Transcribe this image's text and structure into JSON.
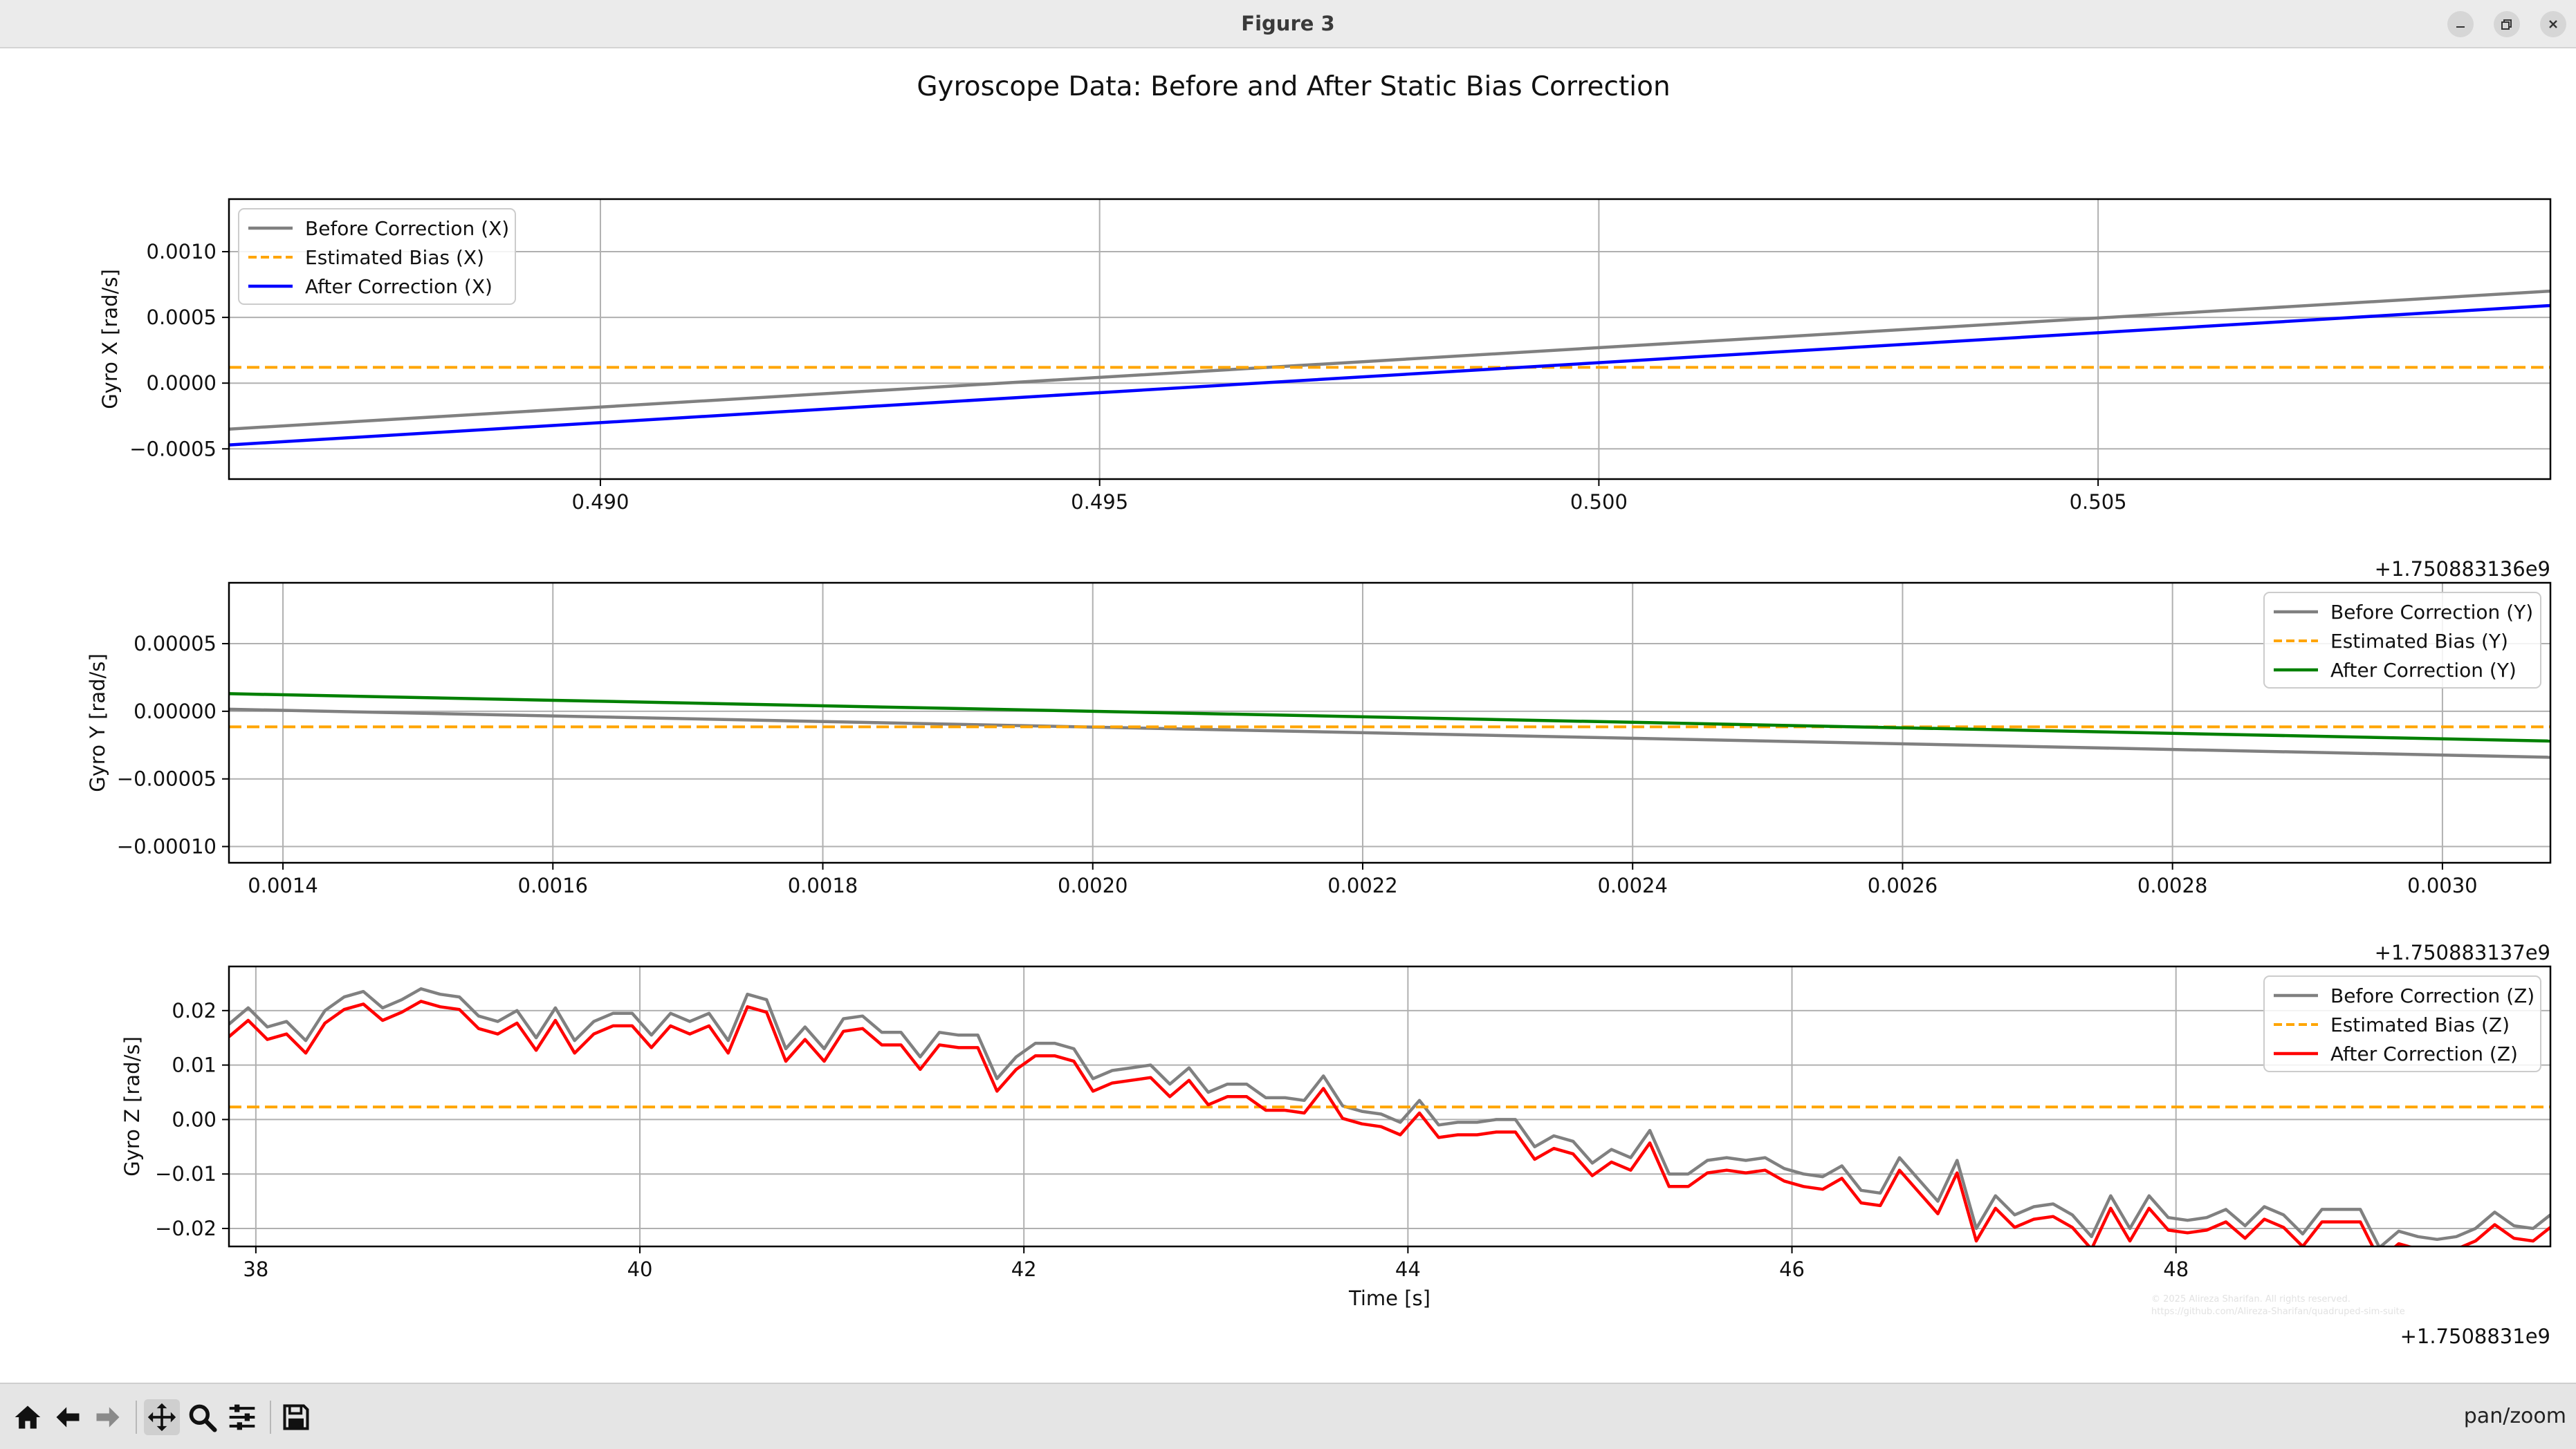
{
  "window": {
    "title": "Figure 3"
  },
  "figure": {
    "suptitle": "Gyroscope Data: Before and After Static Bias Correction",
    "watermark": [
      "© 2025 Alireza Sharifan. All rights reserved.",
      "https://github.com/Alireza-Sharifan/quadruped-sim-suite"
    ]
  },
  "toolbar": {
    "items": [
      "home",
      "back",
      "forward",
      "pan",
      "zoom",
      "configure",
      "save"
    ],
    "status": "pan/zoom"
  },
  "colors": {
    "before": "#808080",
    "bias": "#ffa500",
    "after_x": "#0000ff",
    "after_y": "#008000",
    "after_z": "#ff0000"
  },
  "chart_data": [
    {
      "type": "line",
      "ylabel": "Gyro X [rad/s]",
      "xlabel": "",
      "x_offset": "+1.750883136e9",
      "xlim": [
        0.48628,
        0.50953
      ],
      "ylim": [
        -0.00073,
        0.0014
      ],
      "xticks": [
        0.49,
        0.495,
        0.5,
        0.505
      ],
      "xtick_labels": [
        "0.490",
        "0.495",
        "0.500",
        "0.505"
      ],
      "yticks": [
        -0.0005,
        0.0,
        0.0005,
        0.001
      ],
      "ytick_labels": [
        "−0.0005",
        "0.0000",
        "0.0005",
        "0.0010"
      ],
      "legend_loc": "upper left",
      "grid": true,
      "series": [
        {
          "name": "Before Correction (X)",
          "style": "solid",
          "color": "#808080",
          "x": [
            0.48628,
            0.50953
          ],
          "y": [
            -0.00035,
            0.0007
          ]
        },
        {
          "name": "Estimated Bias (X)",
          "style": "dashed",
          "color": "#ffa500",
          "x": [
            0.48628,
            0.50953
          ],
          "y": [
            0.00012,
            0.00012
          ]
        },
        {
          "name": "After Correction (X)",
          "style": "solid",
          "color": "#0000ff",
          "x": [
            0.48628,
            0.50953
          ],
          "y": [
            -0.00047,
            0.00059
          ]
        }
      ]
    },
    {
      "type": "line",
      "ylabel": "Gyro Y [rad/s]",
      "xlabel": "",
      "x_offset": "+1.750883137e9",
      "xlim": [
        0.00136,
        0.00308
      ],
      "ylim": [
        -0.000112,
        9.5e-05
      ],
      "xticks": [
        0.0014,
        0.0016,
        0.0018,
        0.002,
        0.0022,
        0.0024,
        0.0026,
        0.0028,
        0.003
      ],
      "xtick_labels": [
        "0.0014",
        "0.0016",
        "0.0018",
        "0.0020",
        "0.0022",
        "0.0024",
        "0.0026",
        "0.0028",
        "0.0030"
      ],
      "yticks": [
        -0.0001,
        -5e-05,
        0.0,
        5e-05
      ],
      "ytick_labels": [
        "−0.00010",
        "−0.00005",
        "0.00000",
        "0.00005"
      ],
      "legend_loc": "upper right",
      "grid": true,
      "series": [
        {
          "name": "Before Correction (Y)",
          "style": "solid",
          "color": "#808080",
          "x": [
            0.00136,
            0.00308
          ],
          "y": [
            1.5e-06,
            -3.4e-05
          ]
        },
        {
          "name": "Estimated Bias (Y)",
          "style": "dashed",
          "color": "#ffa500",
          "x": [
            0.00136,
            0.00308
          ],
          "y": [
            -1.15e-05,
            -1.15e-05
          ]
        },
        {
          "name": "After Correction (Y)",
          "style": "solid",
          "color": "#008000",
          "x": [
            0.00136,
            0.00308
          ],
          "y": [
            1.3e-05,
            -2.2e-05
          ]
        }
      ]
    },
    {
      "type": "line",
      "ylabel": "Gyro Z [rad/s]",
      "xlabel": "Time [s]",
      "x_offset": "+1.7508831e9",
      "xlim": [
        37.86,
        49.95
      ],
      "ylim": [
        -0.0233,
        0.0281
      ],
      "xticks": [
        38,
        40,
        42,
        44,
        46,
        48
      ],
      "xtick_labels": [
        "38",
        "40",
        "42",
        "44",
        "46",
        "48"
      ],
      "yticks": [
        -0.02,
        -0.01,
        0.0,
        0.01,
        0.02
      ],
      "ytick_labels": [
        "−0.02",
        "−0.01",
        "0.00",
        "0.01",
        "0.02"
      ],
      "legend_loc": "upper right",
      "grid": true,
      "bias": 0.0023,
      "series": [
        {
          "name": "Before Correction (Z)",
          "style": "solid",
          "color": "#808080",
          "x": [
            37.86,
            37.96,
            38.06,
            38.16,
            38.26,
            38.36,
            38.46,
            38.56,
            38.66,
            38.76,
            38.86,
            38.96,
            39.06,
            39.16,
            39.26,
            39.36,
            39.46,
            39.56,
            39.66,
            39.76,
            39.86,
            39.96,
            40.06,
            40.16,
            40.26,
            40.36,
            40.46,
            40.56,
            40.66,
            40.76,
            40.86,
            40.96,
            41.06,
            41.16,
            41.26,
            41.36,
            41.46,
            41.56,
            41.66,
            41.76,
            41.86,
            41.96,
            42.06,
            42.16,
            42.26,
            42.36,
            42.46,
            42.56,
            42.66,
            42.76,
            42.86,
            42.96,
            43.06,
            43.16,
            43.26,
            43.36,
            43.46,
            43.56,
            43.66,
            43.76,
            43.86,
            43.96,
            44.06,
            44.16,
            44.26,
            44.36,
            44.46,
            44.56,
            44.66,
            44.76,
            44.86,
            44.96,
            45.06,
            45.16,
            45.26,
            45.36,
            45.46,
            45.56,
            45.66,
            45.76,
            45.86,
            45.96,
            46.06,
            46.16,
            46.26,
            46.36,
            46.46,
            46.56,
            46.66,
            46.76,
            46.86,
            46.96,
            47.06,
            47.16,
            47.26,
            47.36,
            47.46,
            47.56,
            47.66,
            47.76,
            47.86,
            47.96,
            48.06,
            48.16,
            48.26,
            48.36,
            48.46,
            48.56,
            48.66,
            48.76,
            48.86,
            48.96,
            49.06,
            49.16,
            49.26,
            49.36,
            49.46,
            49.56,
            49.66,
            49.76,
            49.86,
            49.95
          ],
          "y": [
            0.0175,
            0.0205,
            0.017,
            0.018,
            0.0145,
            0.02,
            0.0225,
            0.0235,
            0.0205,
            0.022,
            0.024,
            0.023,
            0.0225,
            0.019,
            0.018,
            0.02,
            0.015,
            0.0205,
            0.0145,
            0.018,
            0.0195,
            0.0195,
            0.0155,
            0.0195,
            0.018,
            0.0195,
            0.0145,
            0.023,
            0.022,
            0.013,
            0.017,
            0.013,
            0.0185,
            0.019,
            0.016,
            0.016,
            0.0115,
            0.016,
            0.0155,
            0.0155,
            0.0075,
            0.0115,
            0.014,
            0.014,
            0.013,
            0.0075,
            0.009,
            0.0095,
            0.01,
            0.0065,
            0.0095,
            0.005,
            0.0065,
            0.0065,
            0.004,
            0.004,
            0.0035,
            0.008,
            0.0025,
            0.0015,
            0.001,
            -0.0005,
            0.0035,
            -0.001,
            -0.0005,
            -0.0005,
            0.0,
            0.0,
            -0.005,
            -0.003,
            -0.004,
            -0.008,
            -0.0055,
            -0.007,
            -0.002,
            -0.01,
            -0.01,
            -0.0075,
            -0.007,
            -0.0075,
            -0.007,
            -0.009,
            -0.01,
            -0.0105,
            -0.0085,
            -0.013,
            -0.0135,
            -0.007,
            -0.011,
            -0.015,
            -0.0075,
            -0.02,
            -0.014,
            -0.0175,
            -0.016,
            -0.0155,
            -0.0175,
            -0.0215,
            -0.014,
            -0.02,
            -0.014,
            -0.018,
            -0.0185,
            -0.018,
            -0.0165,
            -0.0195,
            -0.016,
            -0.0175,
            -0.021,
            -0.0165,
            -0.0165,
            -0.0165,
            -0.0235,
            -0.0205,
            -0.0215,
            -0.022,
            -0.0215,
            -0.02,
            -0.017,
            -0.0195,
            -0.02,
            -0.0175
          ]
        },
        {
          "name": "Estimated Bias (Z)",
          "style": "dashed",
          "color": "#ffa500",
          "x": [
            37.86,
            49.95
          ],
          "y": [
            0.0023,
            0.0023
          ]
        },
        {
          "name": "After Correction (Z)",
          "style": "solid",
          "color": "#ff0000",
          "derived_from": "Before Correction (Z) minus 0.0023"
        }
      ]
    }
  ]
}
